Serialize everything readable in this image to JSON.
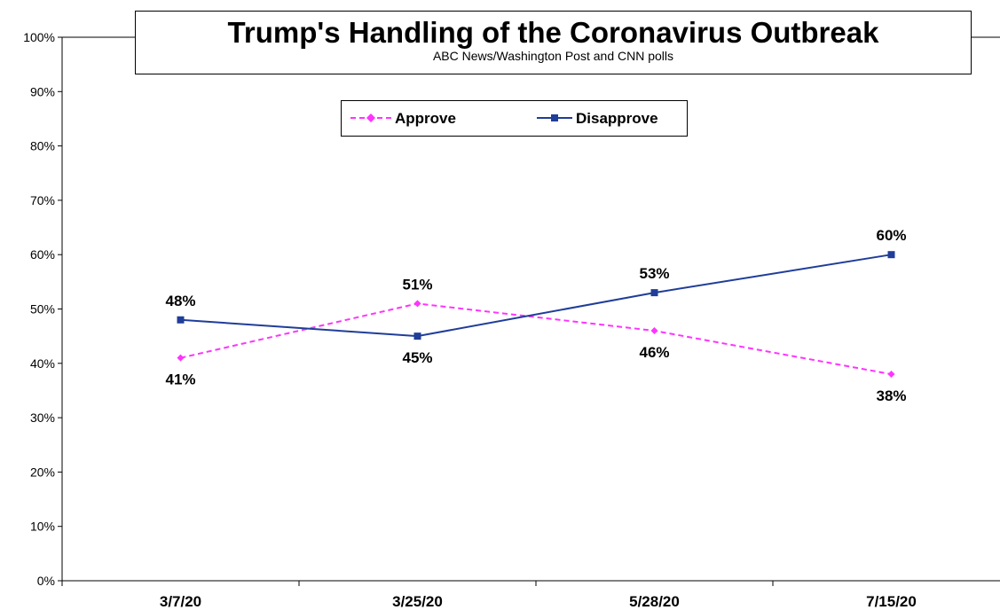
{
  "chart_data": {
    "type": "line",
    "title": "Trump's Handling of the Coronavirus Outbreak",
    "subtitle": "ABC News/Washington Post and CNN polls",
    "categories": [
      "3/7/20",
      "3/25/20",
      "5/28/20",
      "7/15/20"
    ],
    "yticks": [
      "0%",
      "10%",
      "20%",
      "30%",
      "40%",
      "50%",
      "60%",
      "70%",
      "80%",
      "90%",
      "100%"
    ],
    "ylim": [
      0,
      100
    ],
    "grid": false,
    "legend_position": "top-center",
    "series": [
      {
        "name": "Approve",
        "values": [
          41,
          51,
          46,
          38
        ],
        "labels": [
          "41%",
          "51%",
          "46%",
          "38%"
        ],
        "color": "#ff33ff",
        "style": "dashed",
        "marker": "diamond"
      },
      {
        "name": "Disapprove",
        "values": [
          48,
          45,
          53,
          60
        ],
        "labels": [
          "48%",
          "45%",
          "53%",
          "60%"
        ],
        "color": "#1f3d99",
        "style": "solid",
        "marker": "square"
      }
    ]
  }
}
